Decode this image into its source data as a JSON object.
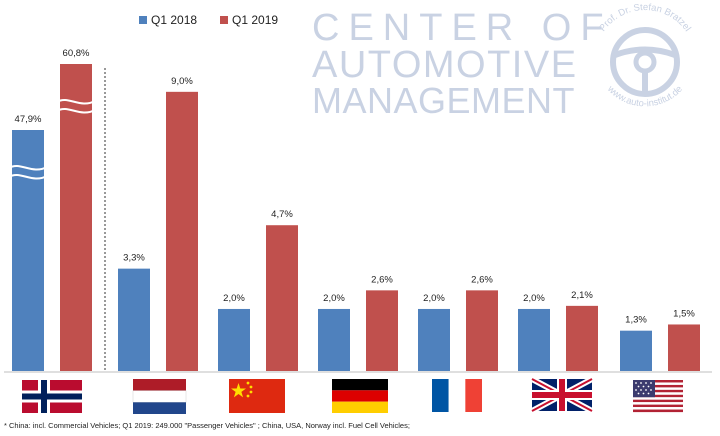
{
  "chart_data": {
    "type": "bar",
    "categories": [
      "Norway",
      "Netherlands",
      "China",
      "Germany",
      "France",
      "United Kingdom",
      "USA"
    ],
    "series": [
      {
        "name": "Q1 2018",
        "values": [
          47.9,
          3.3,
          2.0,
          2.0,
          2.0,
          2.0,
          1.3
        ],
        "labels": [
          "47,9%",
          "3,3%",
          "2,0%",
          "2,0%",
          "2,0%",
          "2,0%",
          "1,3%"
        ]
      },
      {
        "name": "Q1 2019",
        "values": [
          60.8,
          9.0,
          4.7,
          2.6,
          2.6,
          2.1,
          1.5
        ],
        "labels": [
          "60,8%",
          "9,0%",
          "4,7%",
          "2,6%",
          "2,6%",
          "2,1%",
          "1,5%"
        ]
      }
    ],
    "ylim": [
      0,
      10.8
    ],
    "axis_break": {
      "category_index": 0
    },
    "grid": false,
    "legend_position": "top-left",
    "colors": {
      "Q1 2018": "#4f81bd",
      "Q1 2019": "#c0504d"
    }
  },
  "logo": {
    "line1": "CENTER OF",
    "line2": "AUTOMOTIVE",
    "line3": "MANAGEMENT",
    "ring_top": "Prof. Dr. Stefan Bratzel",
    "ring_bottom": "www.auto-institut.de"
  },
  "flags": [
    "norway-flag-icon",
    "netherlands-flag-icon",
    "china-flag-icon",
    "germany-flag-icon",
    "france-flag-icon",
    "uk-flag-icon",
    "usa-flag-icon"
  ],
  "footnote": "* China: incl. Commercial Vehicles; Q1 2019: 249.000 \"Passenger Vehicles\" ; China, USA, Norway incl. Fuel Cell Vehicles;"
}
